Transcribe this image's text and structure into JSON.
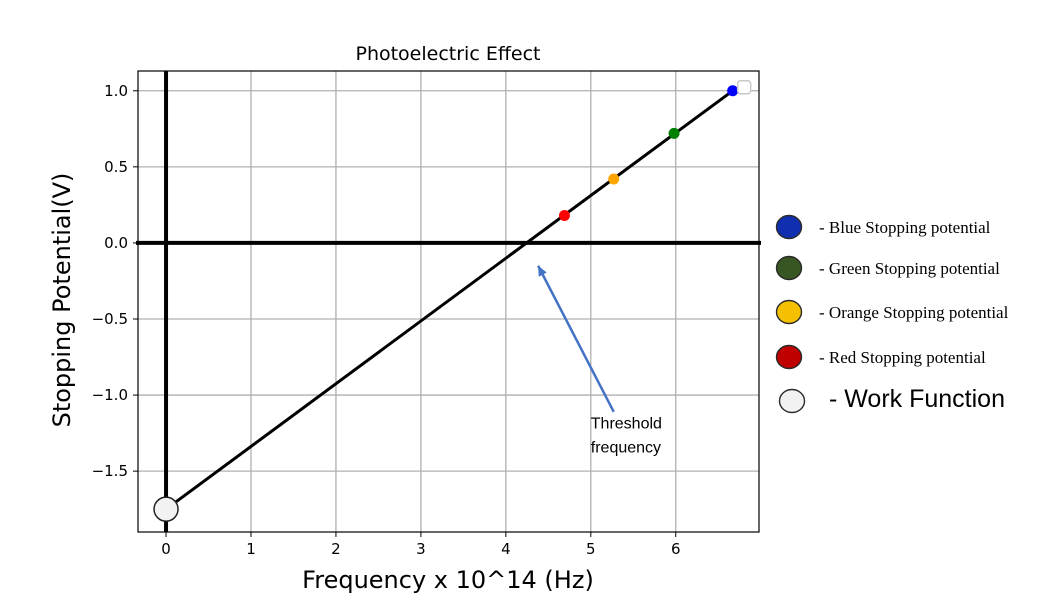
{
  "chart_data": {
    "type": "line",
    "title": "Photoelectric Effect",
    "xlabel": "Frequency x 10^14 (Hz)",
    "ylabel": "Stopping Potential(V)",
    "xlim": [
      -0.33,
      6.98
    ],
    "ylim": [
      -1.9,
      1.13
    ],
    "xticks": [
      0,
      1,
      2,
      3,
      4,
      5,
      6
    ],
    "yticks": [
      1.0,
      0.5,
      0.0,
      -0.5,
      -1.0,
      -1.5
    ],
    "ytick_labels": [
      "1.0",
      "0.5",
      "0.0",
      "−0.5",
      "−1.0",
      "−1.5"
    ],
    "grid": true,
    "fit_line": {
      "x": [
        0,
        6.67
      ],
      "y": [
        -1.75,
        1.0
      ],
      "color": "#000000"
    },
    "points": [
      {
        "x": 4.69,
        "y": 0.18,
        "color": "#ff0000",
        "name": "Red Stopping potential"
      },
      {
        "x": 5.27,
        "y": 0.42,
        "color": "#ffa500",
        "name": "Orange Stopping potential"
      },
      {
        "x": 5.98,
        "y": 0.72,
        "color": "#008000",
        "name": "Green Stopping potential"
      },
      {
        "x": 6.67,
        "y": 1.0,
        "color": "#0000ff",
        "name": "Blue Stopping potential"
      }
    ],
    "work_function_point": {
      "x": 0,
      "y": -1.75,
      "color": "#f2f2f2"
    },
    "annotation": {
      "lines": [
        "Threshold",
        "frequency"
      ],
      "arrow_from": [
        5.27,
        -1.11
      ],
      "arrow_to": [
        4.38,
        -0.15
      ],
      "text_at": [
        5.0,
        -1.22
      ],
      "color": "#4472c4"
    },
    "legend": {
      "placement": "right",
      "items": [
        {
          "label": "- Blue Stopping potential",
          "color": "#0f2fb0"
        },
        {
          "label": "- Green Stopping potential",
          "color": "#375623"
        },
        {
          "label": "- Orange Stopping potential",
          "color": "#f5c000"
        },
        {
          "label": "- Red Stopping potential",
          "color": "#c00000"
        },
        {
          "label": "- Work Function",
          "color": "#f2f2f2"
        }
      ]
    }
  }
}
